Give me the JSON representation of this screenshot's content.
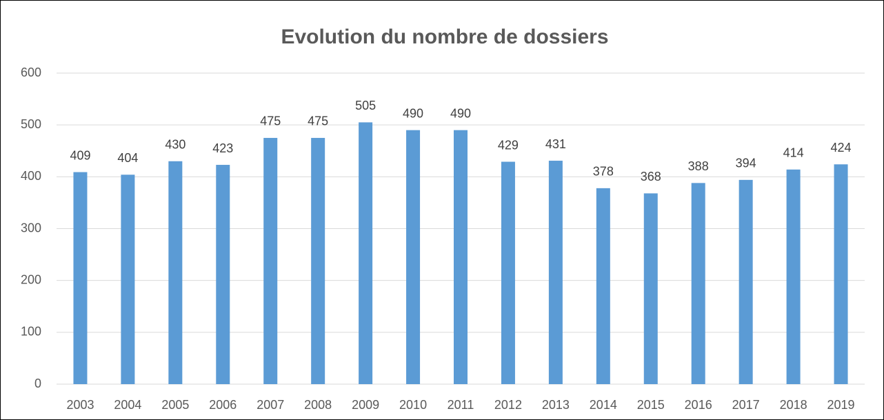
{
  "chart_data": {
    "type": "bar",
    "title": "Evolution du nombre de dossiers",
    "categories": [
      "2003",
      "2004",
      "2005",
      "2006",
      "2007",
      "2008",
      "2009",
      "2010",
      "2011",
      "2012",
      "2013",
      "2014",
      "2015",
      "2016",
      "2017",
      "2018",
      "2019"
    ],
    "values": [
      409,
      404,
      430,
      423,
      475,
      475,
      505,
      490,
      490,
      429,
      431,
      378,
      368,
      388,
      394,
      414,
      424
    ],
    "color": "#5b9bd5",
    "ylim": [
      0,
      600
    ],
    "yticks": [
      0,
      100,
      200,
      300,
      400,
      500,
      600
    ],
    "grid": true
  }
}
